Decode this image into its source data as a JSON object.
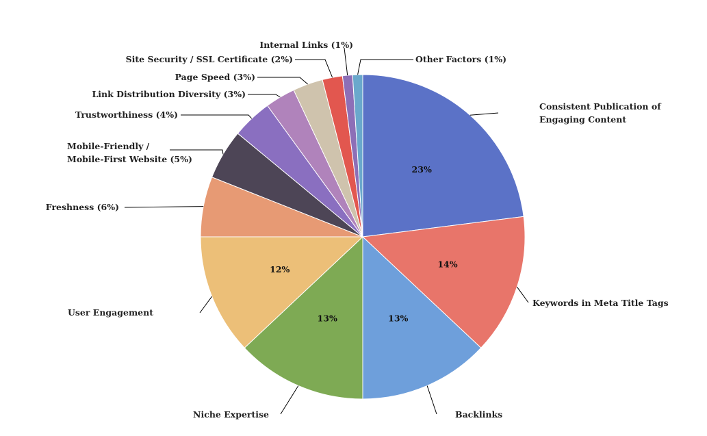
{
  "chart_data": {
    "type": "pie",
    "start_angle_deg": 0,
    "direction": "clockwise",
    "legend": "none",
    "slices": [
      {
        "label": "Consistent Publication of Engaging Content",
        "label_lines": [
          "Consistent Publication of",
          "Engaging Content"
        ],
        "value": 23,
        "data_label": "23%",
        "color": "#5b72c7"
      },
      {
        "label": "Keywords in Meta Title Tags",
        "label_lines": [
          "Keywords in Meta Title Tags"
        ],
        "value": 14,
        "data_label": "14%",
        "color": "#e8756a"
      },
      {
        "label": "Backlinks",
        "label_lines": [
          "Backlinks"
        ],
        "value": 13,
        "data_label": "13%",
        "color": "#6e9fdb"
      },
      {
        "label": "Niche Expertise",
        "label_lines": [
          "Niche Expertise"
        ],
        "value": 13,
        "data_label": "13%",
        "color": "#7eaa54"
      },
      {
        "label": "User Engagement",
        "label_lines": [
          "User Engagement"
        ],
        "value": 12,
        "data_label": "12%",
        "color": "#ecbf78"
      },
      {
        "label": "Freshness (6%)",
        "label_lines": [
          "Freshness (6%)"
        ],
        "value": 6,
        "data_label": "",
        "color": "#e79a74"
      },
      {
        "label": "Mobile-Friendly / Mobile-First Website (5%)",
        "label_lines": [
          "Mobile-Friendly /",
          "Mobile-First Website (5%)"
        ],
        "value": 5,
        "data_label": "",
        "color": "#4d4556"
      },
      {
        "label": "Trustworthiness (4%)",
        "label_lines": [
          "Trustworthiness (4%)"
        ],
        "value": 4,
        "data_label": "",
        "color": "#8a6fc0"
      },
      {
        "label": "Link Distribution Diversity (3%)",
        "label_lines": [
          "Link Distribution Diversity (3%)"
        ],
        "value": 3,
        "data_label": "",
        "color": "#b083bb"
      },
      {
        "label": "Page Speed (3%)",
        "label_lines": [
          "Page Speed (3%)"
        ],
        "value": 3,
        "data_label": "",
        "color": "#cfc3ad"
      },
      {
        "label": "Site Security / SSL Certificate (2%)",
        "label_lines": [
          "Site Security / SSL Certificate (2%)"
        ],
        "value": 2,
        "data_label": "",
        "color": "#e2574f"
      },
      {
        "label": "Internal Links (1%)",
        "label_lines": [
          "Internal Links (1%)"
        ],
        "value": 1,
        "data_label": "",
        "color": "#8d6fb7"
      },
      {
        "label": "Other Factors (1%)",
        "label_lines": [
          "Other Factors (1%)"
        ],
        "value": 1,
        "data_label": "",
        "color": "#6aa8cc"
      }
    ]
  }
}
